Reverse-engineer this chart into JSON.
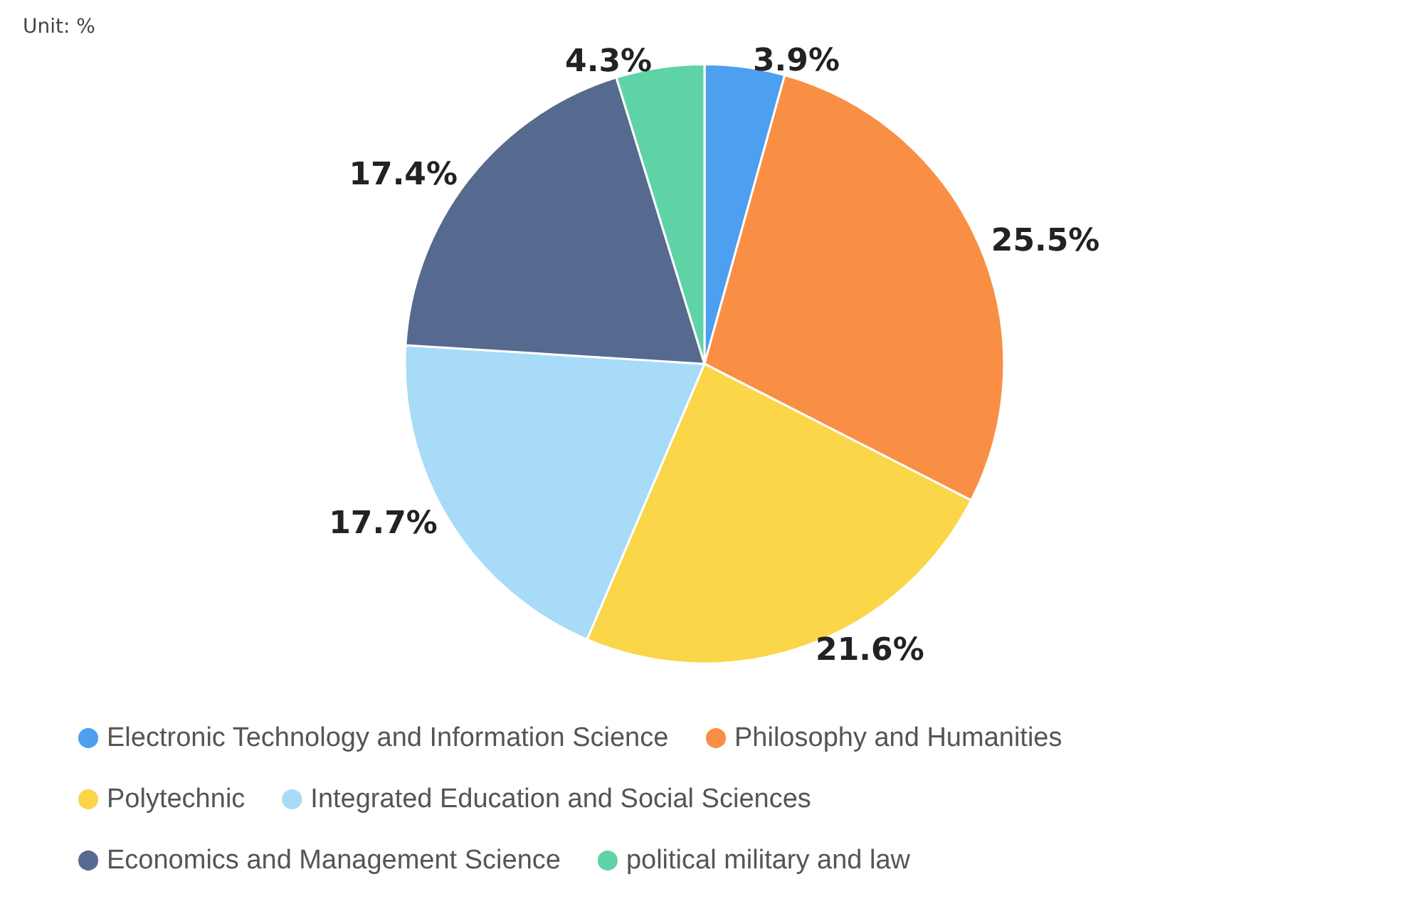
{
  "chart_data": {
    "type": "pie",
    "annotations": [
      "Unit: %"
    ],
    "categories": [
      "Electronic Technology and Information Science",
      "Philosophy and Humanities",
      "Polytechnic",
      "Integrated Education and Social Sciences",
      "Economics and Management Science",
      "political military and law"
    ],
    "values": [
      3.9,
      25.5,
      21.6,
      17.7,
      17.4,
      4.3
    ],
    "colors": [
      "#4d9ff0",
      "#f98f44",
      "#fad648",
      "#a7dbf7",
      "#56698f",
      "#5fd3a6"
    ],
    "value_labels": [
      "3.9%",
      "25.5%",
      "21.6%",
      "17.7%",
      "17.4%",
      "4.3%"
    ],
    "legend": "bottom"
  }
}
